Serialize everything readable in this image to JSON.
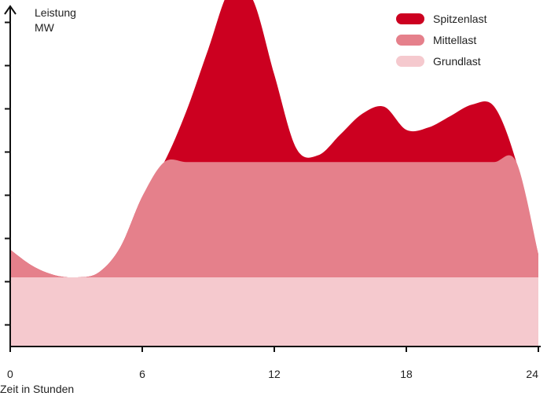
{
  "chart_data": {
    "type": "area",
    "stacked": true,
    "ylabel": "Leistung",
    "yunit": "MW",
    "xlabel": "Zeit in Stunden",
    "xlim": [
      0,
      24
    ],
    "ylim": [
      0,
      15
    ],
    "x_ticks": [
      0,
      6,
      12,
      18,
      24
    ],
    "x_tick_labels": [
      "0",
      "6",
      "12",
      "18",
      "24"
    ],
    "y_tick_count": 8,
    "grundlast_level": 3,
    "mittellast_level": 8,
    "legend_position": "top-right",
    "series": [
      {
        "name": "Spitzenlast",
        "color": "#cc0020",
        "x": [
          0,
          1,
          2,
          3,
          4,
          5,
          6,
          7,
          8,
          9,
          10,
          11,
          12,
          13,
          14,
          15,
          16,
          17,
          18,
          19,
          20,
          21,
          22,
          23,
          24
        ],
        "values": [
          0,
          0,
          0,
          0,
          0,
          0,
          0,
          0,
          2.2,
          4.9,
          7.5,
          7.1,
          3.8,
          0.6,
          0.3,
          1.2,
          2.1,
          2.4,
          1.4,
          1.5,
          2.0,
          2.5,
          2.4,
          0,
          0
        ]
      },
      {
        "name": "Mittellast",
        "color": "#e5808b",
        "x": [
          0,
          1,
          2,
          3,
          4,
          5,
          6,
          7,
          8,
          9,
          10,
          11,
          12,
          13,
          14,
          15,
          16,
          17,
          18,
          19,
          20,
          21,
          22,
          23,
          24
        ],
        "values": [
          1.2,
          0.5,
          0.1,
          0,
          0.2,
          1.3,
          3.5,
          5.0,
          5.0,
          5.0,
          5.0,
          5.0,
          5.0,
          5.0,
          5.0,
          5.0,
          5.0,
          5.0,
          5.0,
          5.0,
          5.0,
          5.0,
          5.0,
          5.0,
          1.0
        ]
      },
      {
        "name": "Grundlast",
        "color": "#f5c9ce",
        "x": [
          0,
          1,
          2,
          3,
          4,
          5,
          6,
          7,
          8,
          9,
          10,
          11,
          12,
          13,
          14,
          15,
          16,
          17,
          18,
          19,
          20,
          21,
          22,
          23,
          24
        ],
        "values": [
          3,
          3,
          3,
          3,
          3,
          3,
          3,
          3,
          3,
          3,
          3,
          3,
          3,
          3,
          3,
          3,
          3,
          3,
          3,
          3,
          3,
          3,
          3,
          3,
          3
        ]
      }
    ]
  }
}
